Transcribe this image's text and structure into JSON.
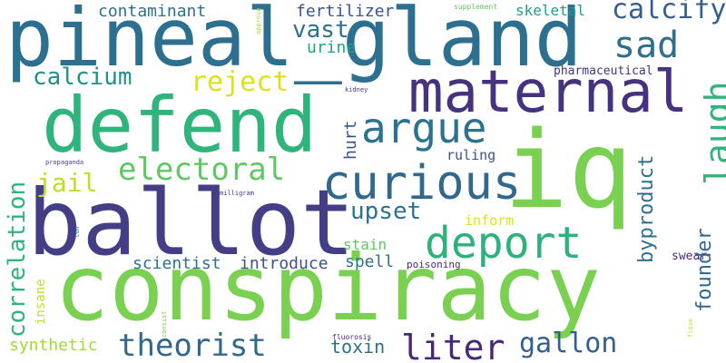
{
  "words": {
    "pineal_gland": "pineal_gland",
    "maternal": "maternal",
    "defend": "defend",
    "iq": "iq",
    "ballot": "ballot",
    "conspiracy": "conspiracy",
    "curious": "curious",
    "deport": "deport",
    "argue": "argue",
    "sad": "sad",
    "calcify": "calcify",
    "electoral": "electoral",
    "theorist": "theorist",
    "liter": "liter",
    "gallon": "gallon",
    "reject": "reject",
    "calcium": "calcium",
    "jail": "jail",
    "upset": "upset",
    "vast": "vast",
    "contaminant": "contaminant",
    "fertilizer": "fertilizer",
    "urine": "urine",
    "skeletal": "skeletal",
    "supplement": "supplement",
    "pharmaceutical": "pharmaceutical",
    "ruling": "ruling",
    "inform": "inform",
    "stain": "stain",
    "spell": "spell",
    "introduce": "introduce",
    "scientist": "scientist",
    "poisoning": "poisoning",
    "swear": "swear",
    "synthetic": "synthetic",
    "toxin": "toxin",
    "kidney": "kidney",
    "milligram": "milligram",
    "propaganda": "propaganda",
    "fluorosis": "fluorosis",
    "laugh": "laugh",
    "correlation": "correlation",
    "byproduct": "byproduct",
    "founder": "founder",
    "hurt": "hurt",
    "insane": "insane",
    "approve": "approve",
    "ton": "ton",
    "consist": "consist",
    "flove": "flove"
  },
  "colors": {
    "background": "#ffffff",
    "palette": [
      "#46327e",
      "#433e85",
      "#3b528b",
      "#31688e",
      "#2c728e",
      "#20928c",
      "#2fb47c",
      "#5ec962",
      "#7ad151",
      "#bddf26",
      "#dde318"
    ]
  }
}
